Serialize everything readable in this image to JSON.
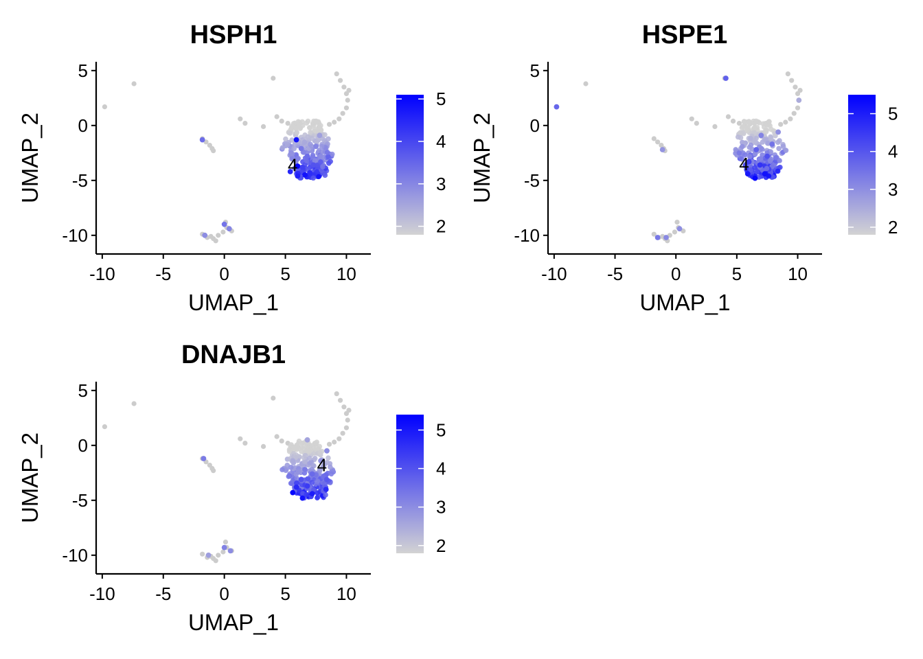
{
  "chart_data": [
    {
      "type": "scatter",
      "title": "HSPH1",
      "xlabel": "UMAP_1",
      "ylabel": "UMAP_2",
      "xlim": [
        -10.5,
        12
      ],
      "ylim": [
        -11.7,
        5.8
      ],
      "x_ticks": [
        -10,
        -5,
        0,
        5,
        10
      ],
      "y_ticks": [
        5,
        0,
        -5,
        -10
      ],
      "color_scale": {
        "min_color": "#d3d3d3",
        "max_color": "#0000ff",
        "min": 1.8,
        "max": 5.1,
        "ticks": [
          5,
          4,
          3,
          2
        ]
      },
      "cluster_label": {
        "text": "4",
        "x": 5.6,
        "y": -3.6
      },
      "expression_points": [
        {
          "x": 5.9,
          "y": -1.3,
          "value": 4.8
        },
        {
          "x": 6.0,
          "y": -3.7,
          "value": 5.0
        },
        {
          "x": 6.6,
          "y": -4.5,
          "value": 4.8
        },
        {
          "x": 6.0,
          "y": -4.6,
          "value": 4.6
        },
        {
          "x": 7.0,
          "y": -4.3,
          "value": 4.4
        },
        {
          "x": 5.4,
          "y": -4.2,
          "value": 4.5
        },
        {
          "x": 6.4,
          "y": -3.8,
          "value": 4.1
        },
        {
          "x": 7.3,
          "y": -3.6,
          "value": 3.8
        },
        {
          "x": 6.8,
          "y": -2.8,
          "value": 3.4
        },
        {
          "x": 7.5,
          "y": -1.9,
          "value": 3.0
        },
        {
          "x": 6.3,
          "y": -2.1,
          "value": 3.2
        },
        {
          "x": 7.8,
          "y": -0.9,
          "value": 2.6
        },
        {
          "x": -1.8,
          "y": -1.3,
          "value": 3.4
        },
        {
          "x": 0.0,
          "y": -9.0,
          "value": 3.3
        },
        {
          "x": 0.4,
          "y": -9.4,
          "value": 3.0
        },
        {
          "x": -1.6,
          "y": -10.0,
          "value": 2.9
        }
      ]
    },
    {
      "type": "scatter",
      "title": "HSPE1",
      "xlabel": "UMAP_1",
      "ylabel": "UMAP_2",
      "xlim": [
        -10.5,
        12
      ],
      "ylim": [
        -11.7,
        5.8
      ],
      "x_ticks": [
        -10,
        -5,
        0,
        5,
        10
      ],
      "y_ticks": [
        5,
        0,
        -5,
        -10
      ],
      "color_scale": {
        "min_color": "#d3d3d3",
        "max_color": "#0000ff",
        "min": 1.8,
        "max": 5.5,
        "ticks": [
          5,
          4,
          3,
          2
        ]
      },
      "cluster_label": {
        "text": "4",
        "x": 5.6,
        "y": -3.5
      },
      "expression_points": [
        {
          "x": 6.5,
          "y": -4.8,
          "value": 5.4
        },
        {
          "x": 7.3,
          "y": -4.4,
          "value": 5.2
        },
        {
          "x": 5.9,
          "y": -4.4,
          "value": 5.1
        },
        {
          "x": 6.9,
          "y": -3.6,
          "value": 4.6
        },
        {
          "x": 6.0,
          "y": -3.3,
          "value": 4.4
        },
        {
          "x": 7.5,
          "y": -2.8,
          "value": 4.1
        },
        {
          "x": 6.6,
          "y": -2.2,
          "value": 3.8
        },
        {
          "x": 7.9,
          "y": -1.7,
          "value": 3.5
        },
        {
          "x": 7.0,
          "y": -0.9,
          "value": 3.2
        },
        {
          "x": 8.4,
          "y": -0.6,
          "value": 3.0
        },
        {
          "x": 4.1,
          "y": 4.3,
          "value": 3.8
        },
        {
          "x": -9.8,
          "y": 1.7,
          "value": 3.7
        },
        {
          "x": -1.5,
          "y": -10.2,
          "value": 3.4
        },
        {
          "x": -0.8,
          "y": -10.2,
          "value": 3.1
        },
        {
          "x": 0.3,
          "y": -9.4,
          "value": 3.0
        },
        {
          "x": -1.1,
          "y": -2.2,
          "value": 2.9
        },
        {
          "x": 10.1,
          "y": 2.3,
          "value": 2.5
        }
      ]
    },
    {
      "type": "scatter",
      "title": "DNAJB1",
      "xlabel": "UMAP_1",
      "ylabel": "UMAP_2",
      "xlim": [
        -10.5,
        12
      ],
      "ylim": [
        -11.7,
        5.8
      ],
      "x_ticks": [
        -10,
        -5,
        0,
        5,
        10
      ],
      "y_ticks": [
        5,
        0,
        -5,
        -10
      ],
      "color_scale": {
        "min_color": "#d3d3d3",
        "max_color": "#0000ff",
        "min": 1.8,
        "max": 5.4,
        "ticks": [
          5,
          4,
          3,
          2
        ]
      },
      "cluster_label": {
        "text": "4",
        "x": 8.0,
        "y": -1.8
      },
      "expression_points": [
        {
          "x": 5.6,
          "y": -4.3,
          "value": 5.3
        },
        {
          "x": 6.4,
          "y": -4.8,
          "value": 5.1
        },
        {
          "x": 7.2,
          "y": -4.4,
          "value": 4.9
        },
        {
          "x": 5.9,
          "y": -3.8,
          "value": 4.7
        },
        {
          "x": 6.8,
          "y": -3.7,
          "value": 4.4
        },
        {
          "x": 6.3,
          "y": -3.1,
          "value": 4.0
        },
        {
          "x": 7.2,
          "y": -2.6,
          "value": 3.6
        },
        {
          "x": 6.6,
          "y": -2.2,
          "value": 3.3
        },
        {
          "x": 7.9,
          "y": -1.4,
          "value": 2.9
        },
        {
          "x": 6.8,
          "y": 0.5,
          "value": 2.6
        },
        {
          "x": 8.4,
          "y": -0.5,
          "value": 3.0
        },
        {
          "x": -1.7,
          "y": -1.2,
          "value": 3.3
        },
        {
          "x": 0.0,
          "y": -9.3,
          "value": 3.2
        },
        {
          "x": 0.5,
          "y": -9.6,
          "value": 3.0
        },
        {
          "x": -1.3,
          "y": -10.0,
          "value": 2.7
        }
      ]
    }
  ],
  "background_cells": [
    {
      "x": -9.8,
      "y": 1.7
    },
    {
      "x": -7.4,
      "y": 3.8
    },
    {
      "x": -1.8,
      "y": -1.2
    },
    {
      "x": -1.5,
      "y": -1.5
    },
    {
      "x": -1.2,
      "y": -1.8
    },
    {
      "x": -1.0,
      "y": -2.1
    },
    {
      "x": -0.9,
      "y": -2.3
    },
    {
      "x": 1.3,
      "y": 0.6
    },
    {
      "x": 1.7,
      "y": 0.2
    },
    {
      "x": 3.2,
      "y": -0.1
    },
    {
      "x": 4.0,
      "y": 4.3
    },
    {
      "x": 4.3,
      "y": 0.8
    },
    {
      "x": 4.7,
      "y": 0.4
    },
    {
      "x": 5.2,
      "y": 0.2
    },
    {
      "x": 9.2,
      "y": 4.7
    },
    {
      "x": 9.5,
      "y": 4.1
    },
    {
      "x": 9.8,
      "y": 3.5
    },
    {
      "x": 10.0,
      "y": 2.9
    },
    {
      "x": 10.1,
      "y": 2.3
    },
    {
      "x": 10.0,
      "y": 1.6
    },
    {
      "x": 9.7,
      "y": 1.1
    },
    {
      "x": 10.2,
      "y": 3.2
    },
    {
      "x": 9.4,
      "y": 0.6
    },
    {
      "x": 9.0,
      "y": 0.3
    },
    {
      "x": 8.6,
      "y": 0.1
    },
    {
      "x": -1.8,
      "y": -9.9
    },
    {
      "x": -1.4,
      "y": -10.2
    },
    {
      "x": -0.9,
      "y": -10.3
    },
    {
      "x": -0.5,
      "y": -10.0
    },
    {
      "x": -0.1,
      "y": -9.7
    },
    {
      "x": 0.2,
      "y": -9.3
    },
    {
      "x": 0.1,
      "y": -8.8
    },
    {
      "x": 0.6,
      "y": -9.6
    },
    {
      "x": -0.7,
      "y": -10.5
    },
    {
      "x": -1.1,
      "y": -10.1
    }
  ]
}
